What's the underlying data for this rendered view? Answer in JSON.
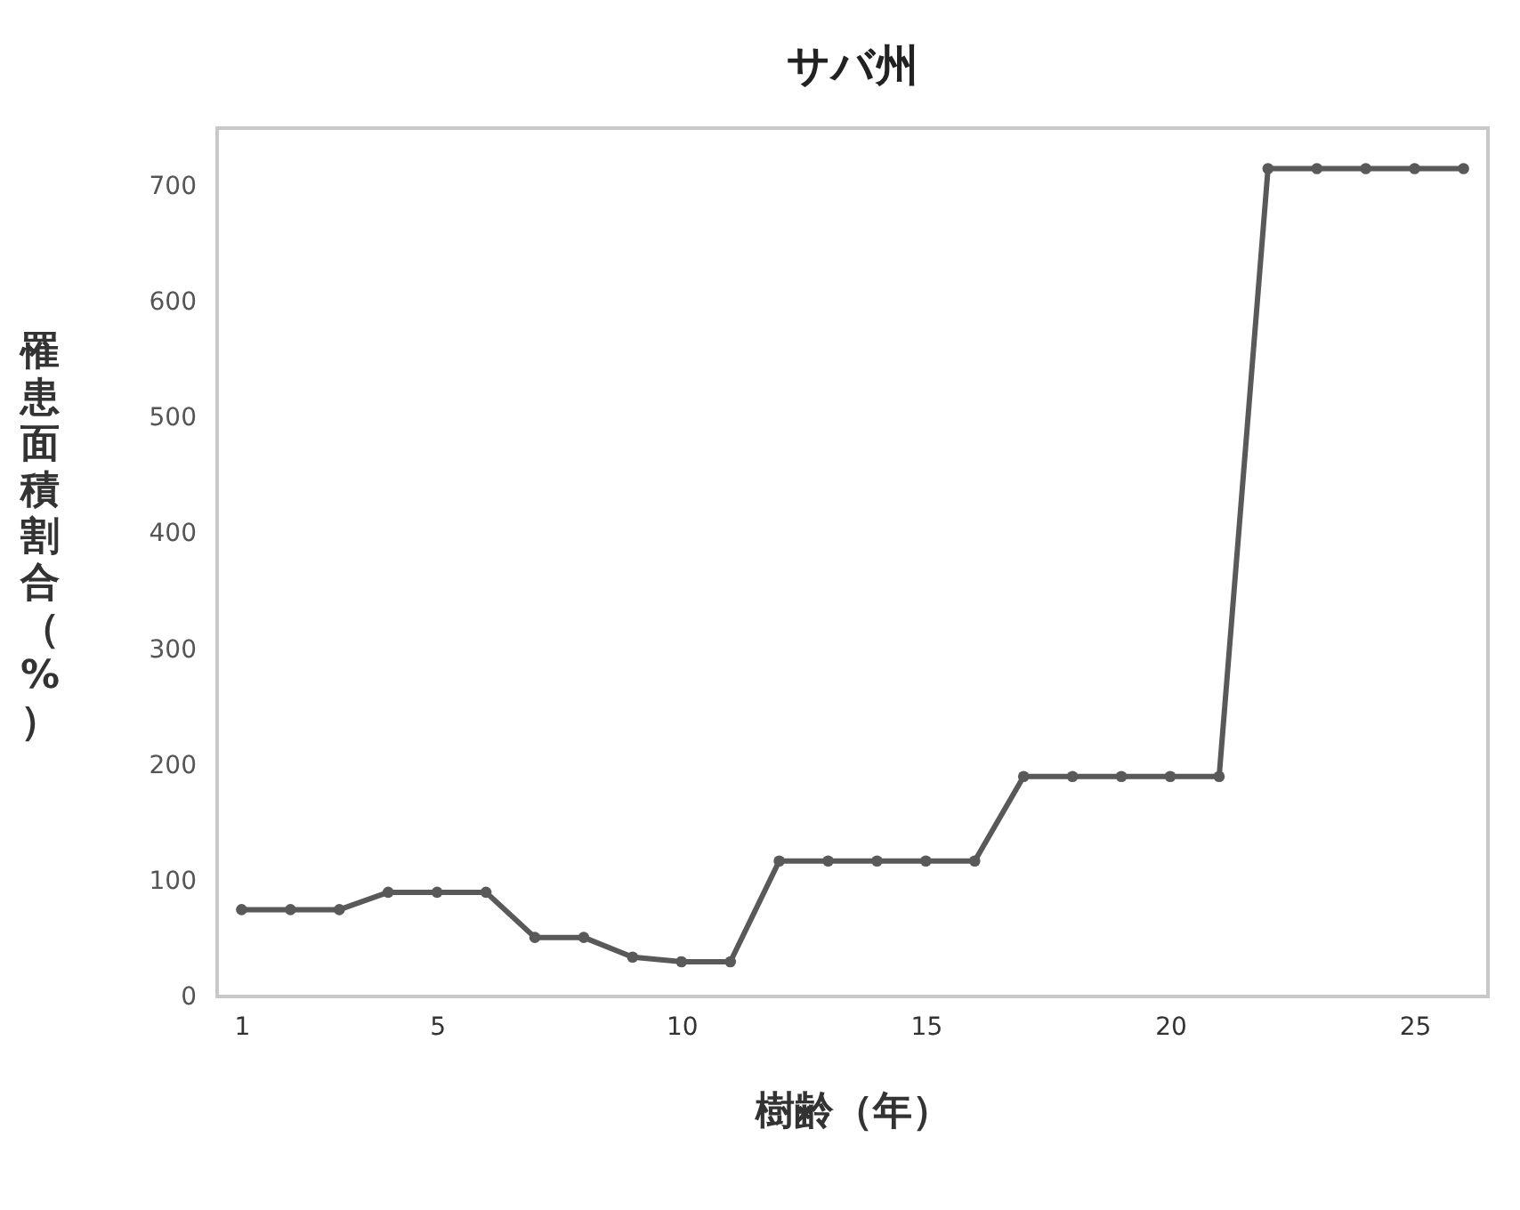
{
  "chart_data": {
    "type": "line",
    "title": "サバ州",
    "xlabel": "樹齢（年）",
    "ylabel": "罹患面積割合（%）",
    "x": [
      1,
      2,
      3,
      4,
      5,
      6,
      7,
      8,
      9,
      10,
      11,
      12,
      13,
      14,
      15,
      16,
      17,
      18,
      19,
      20,
      21,
      22,
      23,
      24,
      25,
      26
    ],
    "series": [
      {
        "color": "#595959",
        "values": [
          75,
          75,
          75,
          90,
          90,
          90,
          51,
          51,
          34,
          30,
          30,
          117,
          117,
          117,
          117,
          117,
          190,
          190,
          190,
          190,
          190,
          715,
          715,
          715,
          715,
          715
        ]
      }
    ],
    "xlim": [
      0.5,
      26.5
    ],
    "xticks": [
      1,
      5,
      10,
      15,
      20,
      25
    ],
    "ylim": [
      0,
      750
    ],
    "yticks": [
      0,
      100,
      200,
      300,
      400,
      500,
      600,
      700
    ],
    "grid": false,
    "marker": "circle",
    "line_style": "solid"
  }
}
